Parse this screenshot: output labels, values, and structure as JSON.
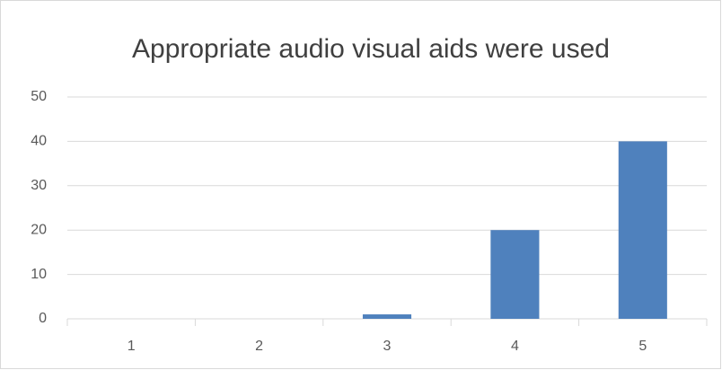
{
  "chart_data": {
    "type": "bar",
    "title": "Appropriate audio visual aids were used",
    "categories": [
      "1",
      "2",
      "3",
      "4",
      "5"
    ],
    "values": [
      0,
      0,
      1,
      20,
      40
    ],
    "color": "#4f81bd",
    "ylim": [
      0,
      50
    ],
    "yticks": [
      0,
      10,
      20,
      30,
      40,
      50
    ],
    "grid": true
  }
}
